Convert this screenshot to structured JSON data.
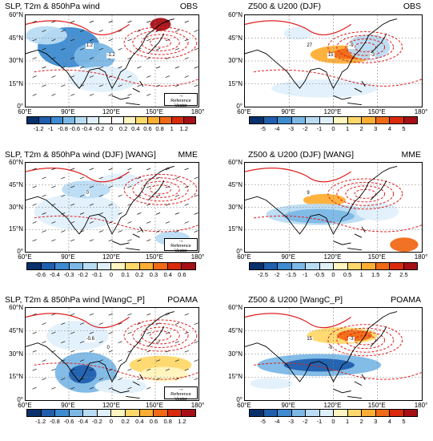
{
  "panels": [
    {
      "id": "p1",
      "title": "SLP, T2m & 850hPa wind",
      "tag": "OBS",
      "ref": "Reference Vector",
      "contour_labels": [
        "1.2",
        "-1.2"
      ]
    },
    {
      "id": "p2",
      "title": "Z500 & U200 (DJF)",
      "tag": "OBS",
      "contour_labels": [
        "27",
        "15",
        "-9",
        "-3"
      ]
    },
    {
      "id": "p3",
      "title": "SLP, T2m & 850hPa wind (DJF) [WANG]",
      "tag": "MME",
      "ref": "Reference Vector",
      "contour_labels": [
        "0"
      ]
    },
    {
      "id": "p4",
      "title": "Z500 & U200 (DJF) [WANG]",
      "tag": "MME",
      "contour_labels": [
        "9"
      ]
    },
    {
      "id": "p5",
      "title": "SLP, T2m & 850hPa wind [WangC_P]",
      "tag": "POAMA",
      "ref": "Reference Vector",
      "contour_labels": [
        "-0.6",
        "0"
      ]
    },
    {
      "id": "p6",
      "title": "Z500 & U200 [WangC_P]",
      "tag": "POAMA",
      "contour_labels": [
        "15",
        "-9",
        "-3"
      ]
    }
  ],
  "axes": {
    "yticks": [
      "60°N",
      "45°N",
      "30°N",
      "15°N",
      "0°"
    ],
    "xticks": [
      "60°E",
      "90°E",
      "120°E",
      "150°E",
      "180°"
    ]
  },
  "colorbars": [
    {
      "id": "cb1",
      "labels": [
        "-1.2",
        "-1",
        "-0.8",
        "-0.6",
        "-0.4",
        "-0.2",
        "0",
        "0.2",
        "0.4",
        "0.6",
        "0.8",
        "1",
        "1.2"
      ]
    },
    {
      "id": "cb2",
      "labels": [
        "-5",
        "-4",
        "-3",
        "-2",
        "-1",
        "0",
        "1",
        "2",
        "3",
        "4",
        "5"
      ]
    },
    {
      "id": "cb3",
      "labels": [
        "-0.6",
        "-0.4",
        "-0.3",
        "-0.2",
        "-0.1",
        "0",
        "0.1",
        "0.2",
        "0.3",
        "0.4",
        "0.6"
      ]
    },
    {
      "id": "cb4",
      "labels": [
        "-2.5",
        "-2",
        "-1.5",
        "-1",
        "-0.5",
        "0",
        "0.5",
        "1",
        "1.5",
        "2",
        "2.5"
      ]
    },
    {
      "id": "cb5",
      "labels": [
        "-1.2",
        "-0.8",
        "-0.6",
        "-0.4",
        "-0.2",
        "0",
        "0.2",
        "0.4",
        "0.6",
        "0.8",
        "1.2"
      ]
    },
    {
      "id": "cb6",
      "labels": [
        "-5",
        "-4",
        "-3",
        "-2",
        "-1",
        "0",
        "1",
        "2",
        "3",
        "4",
        "5"
      ]
    }
  ],
  "colors": {
    "shades": [
      "#08306b",
      "#1f5fae",
      "#3d8bd0",
      "#7cb8e6",
      "#b9dcf3",
      "#e0f0fb",
      "#ffffff",
      "#fff5c0",
      "#ffd86b",
      "#ffae33",
      "#f06a16",
      "#d92b0b",
      "#a50f15"
    ],
    "contour_pos": "#e02020",
    "contour_neg": "#e02020",
    "coast": "#000000"
  }
}
